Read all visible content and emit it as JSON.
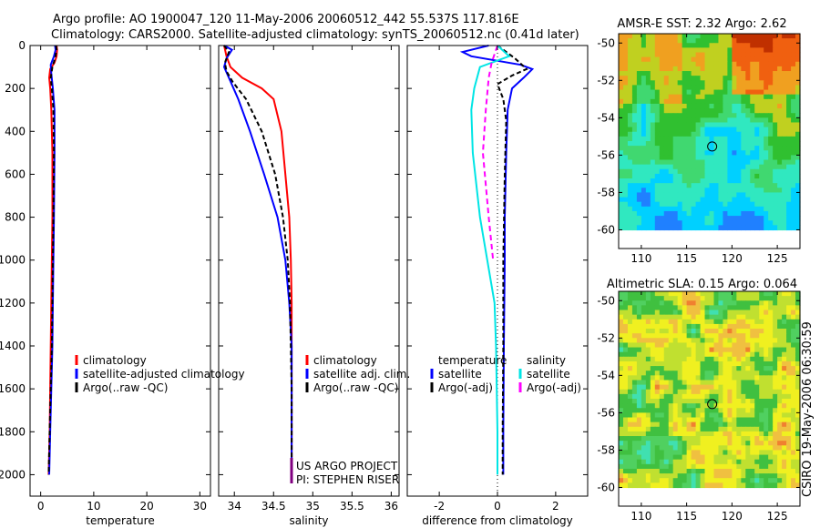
{
  "title": {
    "line1": "Argo profile: AO 1900047_120 11-May-2006 20060512_442 55.537S 117.816E",
    "line2": "Climatology: CARS2000. Satellite-adjusted climatology: synTS_20060512.nc (0.41d later)"
  },
  "side_label": "CSIRO 19-May-2006 06:30:59",
  "chart_data": [
    {
      "id": "temperature",
      "type": "line",
      "xlabel": "temperature",
      "xlim": [
        -2,
        32
      ],
      "ylim": [
        2100,
        0
      ],
      "xticks": [
        0,
        10,
        20,
        30
      ],
      "xtick_labels": [
        "0",
        "10",
        "20",
        "30"
      ],
      "yticks": [
        0,
        200,
        400,
        600,
        800,
        1000,
        1200,
        1400,
        1600,
        1800,
        2000
      ],
      "ytick_labels": [
        "0",
        "200",
        "400",
        "600",
        "800",
        "1000",
        "1200",
        "1400",
        "1600",
        "1800",
        "2000"
      ],
      "legend": [
        {
          "label": "climatology",
          "color": "#ff0000"
        },
        {
          "label": "satellite-adjusted climatology",
          "color": "#0000ff"
        },
        {
          "label": "Argo(..raw -QC)",
          "color": "#000000"
        }
      ],
      "series": [
        {
          "name": "climatology",
          "color": "#ff0000",
          "dash": "",
          "points": [
            [
              3.0,
              0
            ],
            [
              3.1,
              20
            ],
            [
              3.0,
              50
            ],
            [
              2.6,
              80
            ],
            [
              1.8,
              110
            ],
            [
              1.6,
              150
            ],
            [
              1.8,
              200
            ],
            [
              2.0,
              300
            ],
            [
              2.2,
              500
            ],
            [
              2.2,
              800
            ],
            [
              2.1,
              1000
            ],
            [
              2.0,
              1200
            ],
            [
              1.9,
              1400
            ],
            [
              1.8,
              1600
            ],
            [
              1.7,
              1800
            ],
            [
              1.5,
              2000
            ]
          ]
        },
        {
          "name": "satellite-adjusted climatology",
          "color": "#0000ff",
          "dash": "",
          "points": [
            [
              2.7,
              0
            ],
            [
              2.8,
              20
            ],
            [
              2.5,
              50
            ],
            [
              1.9,
              90
            ],
            [
              2.0,
              130
            ],
            [
              2.3,
              200
            ],
            [
              2.6,
              300
            ],
            [
              2.6,
              500
            ],
            [
              2.5,
              800
            ],
            [
              2.4,
              1000
            ],
            [
              2.3,
              1200
            ],
            [
              2.2,
              1400
            ],
            [
              2.0,
              1600
            ],
            [
              1.8,
              1800
            ],
            [
              1.6,
              2000
            ]
          ]
        },
        {
          "name": "Argo(..raw -QC)",
          "color": "#000000",
          "dash": "5,3",
          "points": [
            [
              2.9,
              0
            ],
            [
              3.0,
              20
            ],
            [
              2.7,
              60
            ],
            [
              2.2,
              100
            ],
            [
              1.9,
              150
            ],
            [
              2.1,
              200
            ],
            [
              2.4,
              300
            ],
            [
              2.5,
              500
            ],
            [
              2.4,
              800
            ],
            [
              2.3,
              1000
            ],
            [
              2.2,
              1200
            ],
            [
              2.1,
              1400
            ],
            [
              1.9,
              1600
            ],
            [
              1.7,
              1800
            ],
            [
              1.5,
              2000
            ]
          ]
        }
      ]
    },
    {
      "id": "salinity",
      "type": "line",
      "xlabel": "salinity",
      "xlim": [
        33.8,
        36.1
      ],
      "ylim": [
        2100,
        0
      ],
      "xticks": [
        34,
        34.5,
        35,
        35.5,
        36
      ],
      "xtick_labels": [
        "34",
        "34.5",
        "35",
        "35.5",
        "36"
      ],
      "legend": [
        {
          "label": "climatology",
          "color": "#ff0000"
        },
        {
          "label": "satellite adj. clim.",
          "color": "#0000ff"
        },
        {
          "label": "Argo(..raw -QC)",
          "color": "#000000"
        }
      ],
      "annotation": {
        "line1": "US ARGO PROJECT",
        "line2": "PI: STEPHEN RISER",
        "color": "#800080"
      },
      "series": [
        {
          "name": "climatology",
          "color": "#ff0000",
          "dash": "",
          "points": [
            [
              33.87,
              0
            ],
            [
              33.9,
              50
            ],
            [
              33.95,
              100
            ],
            [
              34.1,
              150
            ],
            [
              34.35,
              200
            ],
            [
              34.5,
              250
            ],
            [
              34.6,
              400
            ],
            [
              34.65,
              600
            ],
            [
              34.7,
              800
            ],
            [
              34.72,
              1000
            ],
            [
              34.73,
              1200
            ],
            [
              34.73,
              1400
            ],
            [
              34.73,
              1600
            ],
            [
              34.73,
              1800
            ],
            [
              34.73,
              2000
            ]
          ]
        },
        {
          "name": "satellite adj. clim.",
          "color": "#0000ff",
          "dash": "",
          "points": [
            [
              33.87,
              0
            ],
            [
              33.97,
              20
            ],
            [
              33.9,
              60
            ],
            [
              33.87,
              100
            ],
            [
              33.93,
              150
            ],
            [
              34.05,
              250
            ],
            [
              34.2,
              400
            ],
            [
              34.38,
              600
            ],
            [
              34.55,
              800
            ],
            [
              34.65,
              1000
            ],
            [
              34.7,
              1200
            ],
            [
              34.73,
              1400
            ],
            [
              34.73,
              1600
            ],
            [
              34.73,
              1800
            ],
            [
              34.73,
              2000
            ]
          ]
        },
        {
          "name": "Argo(..raw -QC)",
          "color": "#000000",
          "dash": "5,3",
          "points": [
            [
              33.87,
              0
            ],
            [
              33.93,
              30
            ],
            [
              33.88,
              80
            ],
            [
              33.9,
              120
            ],
            [
              33.98,
              170
            ],
            [
              34.15,
              250
            ],
            [
              34.35,
              400
            ],
            [
              34.52,
              600
            ],
            [
              34.62,
              800
            ],
            [
              34.68,
              1000
            ],
            [
              34.71,
              1200
            ],
            [
              34.72,
              1400
            ],
            [
              34.73,
              1600
            ],
            [
              34.73,
              1800
            ],
            [
              34.73,
              2000
            ]
          ]
        }
      ]
    },
    {
      "id": "difference",
      "type": "line",
      "xlabel": "difference from climatology",
      "xlim": [
        -3.1,
        3.1
      ],
      "ylim": [
        2100,
        0
      ],
      "xticks": [
        -2,
        0,
        2
      ],
      "xtick_labels": [
        "-2",
        "0",
        "2"
      ],
      "legend_groups": [
        {
          "header": "temperature",
          "items": [
            {
              "label": "satellite",
              "color": "#0000ff"
            },
            {
              "label": "Argo(-adj)",
              "color": "#000000"
            }
          ]
        },
        {
          "header": "salinity",
          "items": [
            {
              "label": "satellite",
              "color": "#00e5e5"
            },
            {
              "label": "Argo(-adj)",
              "color": "#ff00ff"
            }
          ]
        }
      ],
      "series": [
        {
          "name": "temperature satellite",
          "color": "#0000ff",
          "dash": "",
          "points": [
            [
              -0.3,
              0
            ],
            [
              -1.2,
              30
            ],
            [
              -0.9,
              50
            ],
            [
              0.8,
              90
            ],
            [
              1.2,
              110
            ],
            [
              0.9,
              150
            ],
            [
              0.5,
              200
            ],
            [
              0.35,
              300
            ],
            [
              0.3,
              500
            ],
            [
              0.25,
              800
            ],
            [
              0.25,
              1000
            ],
            [
              0.22,
              1400
            ],
            [
              0.2,
              1800
            ],
            [
              0.2,
              2000
            ]
          ]
        },
        {
          "name": "temperature Argo(-adj)",
          "color": "#000000",
          "dash": "5,3",
          "points": [
            [
              0.0,
              0
            ],
            [
              0.6,
              60
            ],
            [
              1.0,
              110
            ],
            [
              0.5,
              140
            ],
            [
              0.0,
              180
            ],
            [
              0.2,
              250
            ],
            [
              0.3,
              350
            ],
            [
              0.25,
              600
            ],
            [
              0.2,
              1000
            ],
            [
              0.2,
              1400
            ],
            [
              0.18,
              1800
            ],
            [
              0.18,
              2000
            ]
          ]
        },
        {
          "name": "salinity satellite",
          "color": "#00e5e5",
          "dash": "",
          "points": [
            [
              0.0,
              0
            ],
            [
              0.4,
              50
            ],
            [
              -0.6,
              100
            ],
            [
              -0.8,
              200
            ],
            [
              -0.9,
              300
            ],
            [
              -0.85,
              500
            ],
            [
              -0.6,
              800
            ],
            [
              -0.35,
              1000
            ],
            [
              -0.1,
              1200
            ],
            [
              -0.05,
              1400
            ],
            [
              0.0,
              1800
            ],
            [
              0.0,
              2000
            ]
          ]
        },
        {
          "name": "salinity Argo(-adj)",
          "color": "#ff00ff",
          "dash": "6,4",
          "points": [
            [
              0.0,
              0
            ],
            [
              -0.2,
              80
            ],
            [
              -0.3,
              150
            ],
            [
              -0.4,
              300
            ],
            [
              -0.5,
              500
            ],
            [
              -0.3,
              800
            ],
            [
              -0.15,
              1000
            ]
          ]
        }
      ]
    },
    {
      "id": "sst_map",
      "type": "heatmap",
      "title": "AMSR-E SST: 2.32  Argo: 2.62",
      "xlim": [
        107.5,
        127.5
      ],
      "ylim": [
        -61,
        -49.5
      ],
      "data_lat_min": -60,
      "xticks": [
        110,
        115,
        120,
        125
      ],
      "xtick_labels": [
        "110",
        "115",
        "120",
        "125"
      ],
      "yticks": [
        -50,
        -52,
        -54,
        -56,
        -58,
        -60
      ],
      "ytick_labels": [
        "-50",
        "-52",
        "-54",
        "-56",
        "-58",
        "-60"
      ],
      "marker": {
        "lon": 117.816,
        "lat": -55.537
      },
      "colors": [
        "#2080ff",
        "#00d0ff",
        "#30e8c0",
        "#40d870",
        "#30c030",
        "#c0d020",
        "#f0a020",
        "#f06010",
        "#c03000"
      ]
    },
    {
      "id": "sla_map",
      "type": "heatmap",
      "title": "Altimetric SLA: 0.15  Argo: 0.064",
      "xlim": [
        107.5,
        127.5
      ],
      "ylim": [
        -61,
        -49.5
      ],
      "data_lat_min": -60,
      "xticks": [
        110,
        115,
        120,
        125
      ],
      "xtick_labels": [
        "110",
        "115",
        "120",
        "125"
      ],
      "yticks": [
        -50,
        -52,
        -54,
        -56,
        -58,
        -60
      ],
      "ytick_labels": [
        "-50",
        "-52",
        "-54",
        "-56",
        "-58",
        "-60"
      ],
      "marker": {
        "lon": 117.816,
        "lat": -55.537
      },
      "colors": [
        "#30a0d0",
        "#40e0b0",
        "#50d060",
        "#40c040",
        "#c0e030",
        "#f0f020",
        "#f0c040",
        "#f08030"
      ]
    }
  ]
}
